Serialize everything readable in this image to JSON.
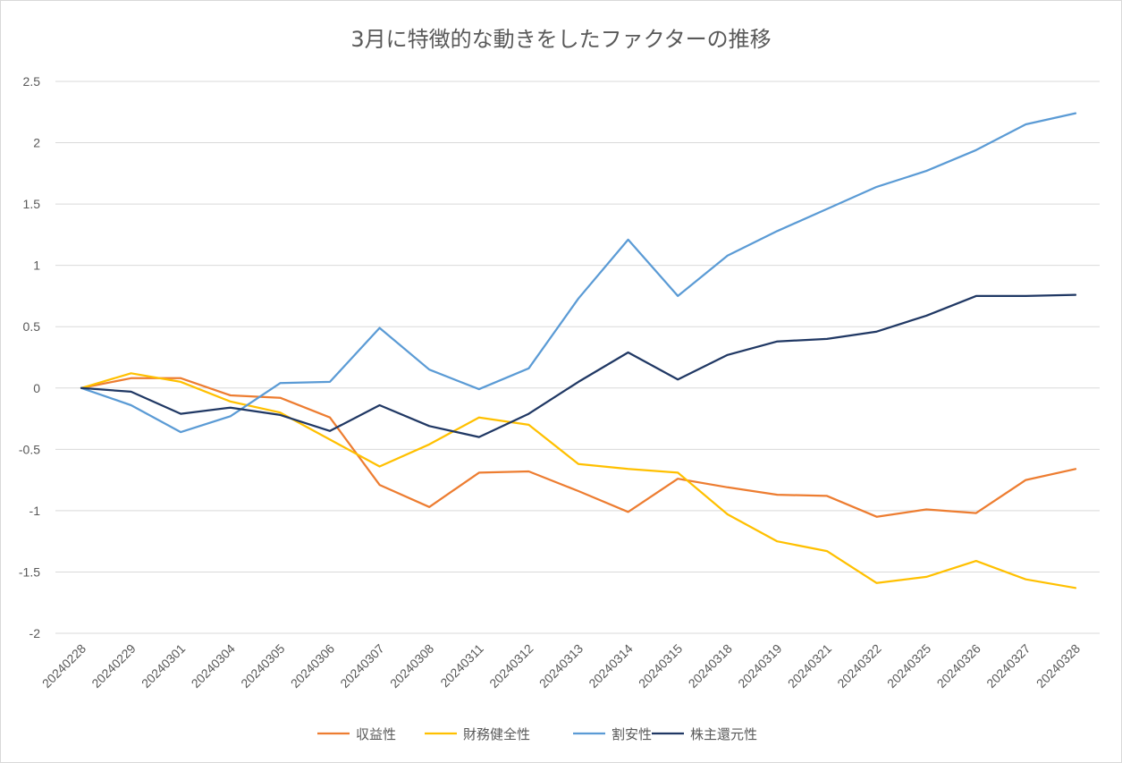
{
  "chart_data": {
    "type": "line",
    "title": "3月に特徴的な動きをしたファクターの推移",
    "xlabel": "",
    "ylabel": "",
    "ylim": [
      -2,
      2.5
    ],
    "y_ticks": [
      2.5,
      2,
      1.5,
      1,
      0.5,
      0,
      -0.5,
      -1,
      -1.5,
      -2
    ],
    "y_tick_labels": [
      "2.5",
      "2",
      "1.5",
      "1",
      "0.5",
      "0",
      "-0.5",
      "-1",
      "-1.5",
      "-2"
    ],
    "grid": true,
    "legend_position": "bottom",
    "categories": [
      "20240228",
      "20240229",
      "20240301",
      "20240304",
      "20240305",
      "20240306",
      "20240307",
      "20240308",
      "20240311",
      "20240312",
      "20240313",
      "20240314",
      "20240315",
      "20240318",
      "20240319",
      "20240321",
      "20240322",
      "20240325",
      "20240326",
      "20240327",
      "20240328"
    ],
    "series": [
      {
        "name": "収益性",
        "color": "#ED7D31",
        "values": [
          0,
          0.08,
          0.08,
          -0.06,
          -0.08,
          -0.24,
          -0.79,
          -0.97,
          -0.69,
          -0.68,
          -0.84,
          -1.01,
          -0.74,
          -0.81,
          -0.87,
          -0.88,
          -1.05,
          -0.99,
          -1.02,
          -0.75,
          -0.66
        ]
      },
      {
        "name": "財務健全性",
        "color": "#FFC000",
        "values": [
          0,
          0.12,
          0.05,
          -0.11,
          -0.2,
          -0.42,
          -0.64,
          -0.46,
          -0.24,
          -0.3,
          -0.62,
          -0.66,
          -0.69,
          -1.03,
          -1.25,
          -1.33,
          -1.59,
          -1.54,
          -1.41,
          -1.56,
          -1.63
        ]
      },
      {
        "name": "割安性",
        "color": "#5B9BD5",
        "values": [
          0,
          -0.14,
          -0.36,
          -0.23,
          0.04,
          0.05,
          0.49,
          0.15,
          -0.01,
          0.16,
          0.73,
          1.21,
          0.75,
          1.08,
          1.28,
          1.46,
          1.64,
          1.77,
          1.94,
          2.15,
          2.24
        ]
      },
      {
        "name": "株主還元性",
        "color": "#203864",
        "values": [
          0,
          -0.03,
          -0.21,
          -0.16,
          -0.22,
          -0.35,
          -0.14,
          -0.31,
          -0.4,
          -0.21,
          0.05,
          0.29,
          0.07,
          0.27,
          0.38,
          0.4,
          0.46,
          0.59,
          0.75,
          0.75,
          0.76
        ]
      }
    ]
  }
}
